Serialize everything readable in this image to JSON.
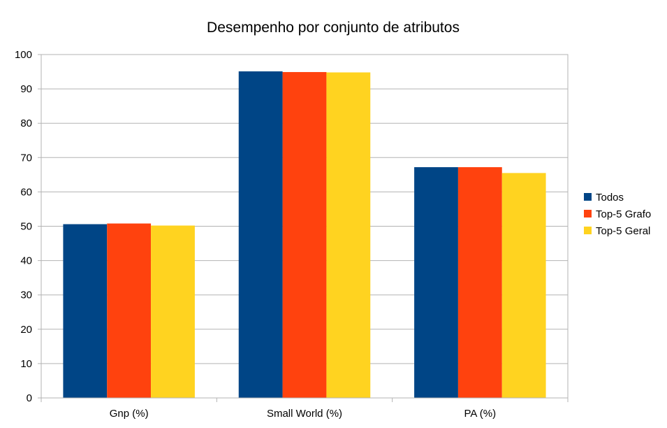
{
  "chart_data": {
    "type": "bar",
    "title": "Desempenho por conjunto de atributos",
    "xlabel": "",
    "ylabel": "",
    "categories": [
      "Gnp (%)",
      "Small World (%)",
      "PA (%)"
    ],
    "series": [
      {
        "name": "Todos",
        "values": [
          50.6,
          95.1,
          67.2
        ],
        "color": "#004586"
      },
      {
        "name": "Top-5 Grafo",
        "values": [
          50.8,
          94.9,
          67.2
        ],
        "color": "#ff420e"
      },
      {
        "name": "Top-5 Geral",
        "values": [
          50.2,
          94.8,
          65.5
        ],
        "color": "#ffd320"
      }
    ],
    "ylim": [
      0,
      100
    ],
    "yticks": [
      0,
      10,
      20,
      30,
      40,
      50,
      60,
      70,
      80,
      90,
      100
    ],
    "grid": true,
    "legend_position": "right"
  }
}
